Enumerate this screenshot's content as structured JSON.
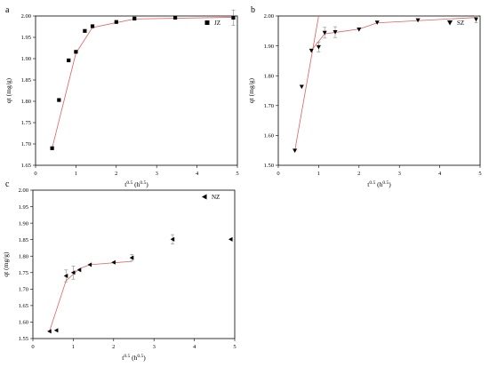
{
  "chart_data": [
    {
      "type": "scatter",
      "panel_label": "a",
      "xlabel": "t0.5 (h0.5)",
      "xlabel_parts": {
        "base": "t",
        "sup1": "0.5",
        "mid": " (h",
        "sup2": "0.5",
        "end": ")"
      },
      "ylabel": "qt (mg/g)",
      "xlim": [
        0,
        5
      ],
      "ylim": [
        1.65,
        2.0
      ],
      "xticks": [
        "0",
        "1",
        "2",
        "3",
        "4",
        "5"
      ],
      "yticks": [
        "1.65",
        "1.70",
        "1.75",
        "1.80",
        "1.85",
        "1.90",
        "1.95",
        "2.00"
      ],
      "marker": "square",
      "legend": "top-right",
      "series": [
        {
          "name": "JZ",
          "points": [
            {
              "x": 0.41,
              "y": 1.69,
              "err": 0
            },
            {
              "x": 0.58,
              "y": 1.803,
              "err": 0
            },
            {
              "x": 0.82,
              "y": 1.896,
              "err": 0
            },
            {
              "x": 1.0,
              "y": 1.916,
              "err": 0
            },
            {
              "x": 1.22,
              "y": 1.965,
              "err": 0
            },
            {
              "x": 1.41,
              "y": 1.976,
              "err": 0
            },
            {
              "x": 2.0,
              "y": 1.986,
              "err": 0
            },
            {
              "x": 2.45,
              "y": 1.994,
              "err": 0
            },
            {
              "x": 3.46,
              "y": 1.996,
              "err": 0
            },
            {
              "x": 4.9,
              "y": 1.996,
              "err": 0.018
            }
          ]
        }
      ],
      "fit_lines": [
        [
          {
            "x": 0.41,
            "y": 1.69
          },
          {
            "x": 1.0,
            "y": 1.913
          }
        ],
        [
          {
            "x": 1.0,
            "y": 1.913
          },
          {
            "x": 1.41,
            "y": 1.973
          }
        ],
        [
          {
            "x": 1.41,
            "y": 1.973
          },
          {
            "x": 2.45,
            "y": 1.993
          },
          {
            "x": 4.9,
            "y": 1.997
          }
        ]
      ]
    },
    {
      "type": "scatter",
      "panel_label": "b",
      "xlabel": "t0.5 (h0.5)",
      "xlabel_parts": {
        "base": "t",
        "sup1": "0.5",
        "mid": " (h",
        "sup2": "0.5",
        "end": ")"
      },
      "ylabel": "qt (mg/g)",
      "xlim": [
        0,
        5
      ],
      "ylim": [
        1.5,
        2.0
      ],
      "xticks": [
        "0",
        "1",
        "2",
        "3",
        "4",
        "5"
      ],
      "yticks": [
        "1.50",
        "1.60",
        "1.70",
        "1.80",
        "1.90",
        "2.00"
      ],
      "marker": "triangle-down",
      "legend": "top-right",
      "series": [
        {
          "name": "SZ",
          "points": [
            {
              "x": 0.41,
              "y": 1.549,
              "err": 0
            },
            {
              "x": 0.58,
              "y": 1.763,
              "err": 0
            },
            {
              "x": 0.82,
              "y": 1.884,
              "err": 0
            },
            {
              "x": 1.0,
              "y": 1.896,
              "err": 0.016
            },
            {
              "x": 1.15,
              "y": 1.944,
              "err": 0.018
            },
            {
              "x": 1.41,
              "y": 1.946,
              "err": 0.018
            },
            {
              "x": 2.0,
              "y": 1.955,
              "err": 0
            },
            {
              "x": 2.45,
              "y": 1.978,
              "err": 0
            },
            {
              "x": 3.46,
              "y": 1.986,
              "err": 0
            },
            {
              "x": 4.9,
              "y": 1.989,
              "err": 0.012
            }
          ]
        }
      ],
      "fit_lines": [
        [
          {
            "x": 0.41,
            "y": 1.549
          },
          {
            "x": 1.0,
            "y": 2.0
          }
        ],
        [
          {
            "x": 0.82,
            "y": 1.885
          },
          {
            "x": 1.15,
            "y": 1.94
          },
          {
            "x": 2.0,
            "y": 1.956
          }
        ],
        [
          {
            "x": 2.0,
            "y": 1.956
          },
          {
            "x": 2.45,
            "y": 1.977
          },
          {
            "x": 4.9,
            "y": 1.995
          }
        ]
      ]
    },
    {
      "type": "scatter",
      "panel_label": "c",
      "xlabel": "t0.5 (h0.5)",
      "xlabel_parts": {
        "base": "t",
        "sup1": "0.5",
        "mid": " (h",
        "sup2": "0.5",
        "end": ")"
      },
      "ylabel": "qt (mg/g)",
      "xlim": [
        0,
        5
      ],
      "ylim": [
        1.55,
        2.0
      ],
      "xticks": [
        "0",
        "1",
        "2",
        "3",
        "4",
        "5"
      ],
      "yticks": [
        "1.55",
        "1.60",
        "1.65",
        "1.70",
        "1.75",
        "1.80",
        "1.85",
        "1.90",
        "1.95",
        "2.00"
      ],
      "marker": "triangle-left",
      "legend": "top-right",
      "series": [
        {
          "name": "NZ",
          "points": [
            {
              "x": 0.41,
              "y": 1.572,
              "err": 0
            },
            {
              "x": 0.58,
              "y": 1.575,
              "err": 0
            },
            {
              "x": 0.82,
              "y": 1.74,
              "err": 0.018
            },
            {
              "x": 1.0,
              "y": 1.75,
              "err": 0.02
            },
            {
              "x": 1.15,
              "y": 1.758,
              "err": 0
            },
            {
              "x": 1.41,
              "y": 1.774,
              "err": 0
            },
            {
              "x": 2.0,
              "y": 1.781,
              "err": 0
            },
            {
              "x": 2.45,
              "y": 1.795,
              "err": 0.01
            },
            {
              "x": 3.46,
              "y": 1.851,
              "err": 0.014
            },
            {
              "x": 4.9,
              "y": 1.851,
              "err": 0
            }
          ]
        }
      ],
      "fit_lines": [
        [
          {
            "x": 0.41,
            "y": 1.572
          },
          {
            "x": 0.82,
            "y": 1.725
          },
          {
            "x": 1.15,
            "y": 1.762
          }
        ],
        [
          {
            "x": 1.15,
            "y": 1.762
          },
          {
            "x": 1.41,
            "y": 1.774
          },
          {
            "x": 2.45,
            "y": 1.784
          }
        ]
      ]
    }
  ]
}
